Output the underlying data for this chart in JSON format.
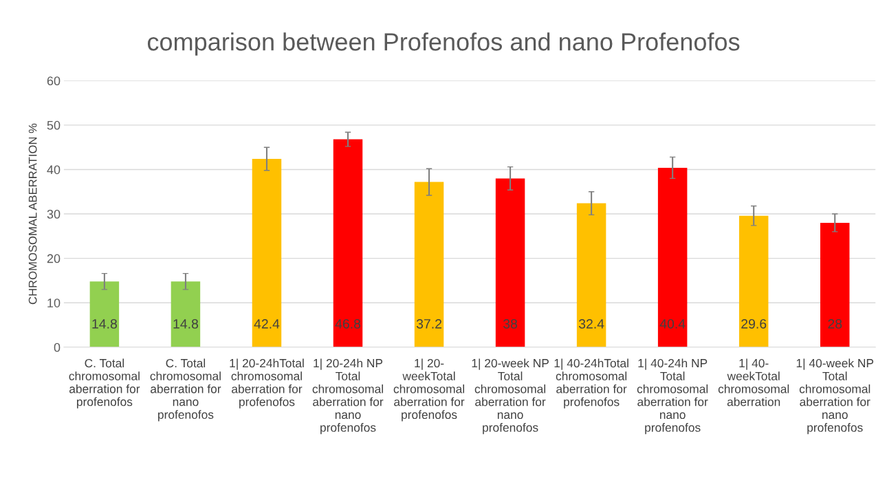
{
  "chart_data": {
    "type": "bar",
    "title": "comparison between Profenofos and nano Profenofos",
    "ylabel": "CHROMOSOMAL ABERRATION %",
    "categories": [
      "C. Total\nchromosomal\naberration for\nprofenofos",
      "C. Total\nchromosomal\naberration for\nnano\nprofenofos",
      "1| 20-24hTotal\nchromosomal\naberration for\nprofenofos",
      "1| 20-24h NP\nTotal\nchromosomal\naberration for\nnano\nprofenofos",
      "1| 20-\nweekTotal\nchromosomal\naberration for\nprofenofos",
      "1| 20-week NP\nTotal\nchromosomal\naberration for\nnano\nprofenofos",
      "1| 40-24hTotal\nchromosomal\naberration for\nprofenofos",
      "1| 40-24h NP\nTotal\nchromosomal\naberration for\nnano\nprofenofos",
      "1| 40-\nweekTotal\nchromosomal\naberration",
      "1| 40-week NP\nTotal\nchromosomal\naberration for\nnano\nprofenofos"
    ],
    "values": [
      14.8,
      14.8,
      42.4,
      46.8,
      37.2,
      38,
      32.4,
      40.4,
      29.6,
      28
    ],
    "errors": [
      1.8,
      1.8,
      2.6,
      1.6,
      3,
      2.6,
      2.6,
      2.4,
      2.2,
      2
    ],
    "colors": [
      "#92d050",
      "#92d050",
      "#ffc000",
      "#ff0000",
      "#ffc000",
      "#ff0000",
      "#ffc000",
      "#ff0000",
      "#ffc000",
      "#ff0000"
    ],
    "ylim": [
      0,
      60
    ],
    "yticks": [
      0,
      10,
      20,
      30,
      40,
      50,
      60
    ],
    "grid": "y",
    "data_labels": true
  }
}
